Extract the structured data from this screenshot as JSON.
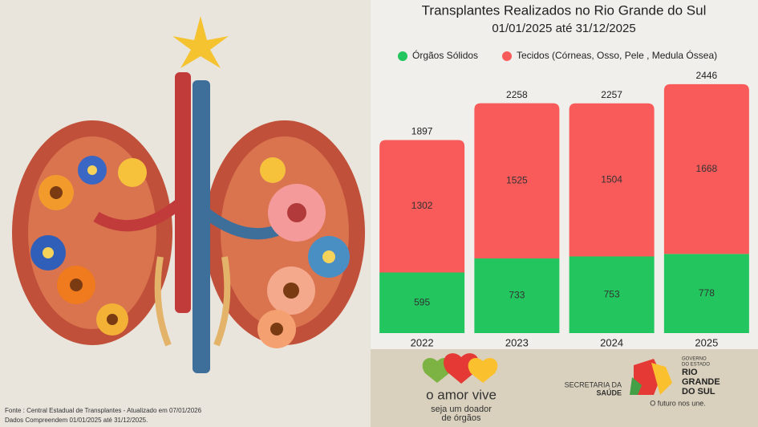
{
  "chart_data": {
    "type": "stacked_bar",
    "title": "Transplantes Realizados no Rio Grande do Sul",
    "subtitle": "01/01/2025 até 31/12/2025",
    "categories": [
      "2022",
      "2023",
      "2024",
      "2025"
    ],
    "series": [
      {
        "name": "Órgãos Sólidos",
        "color": "#22c55e",
        "values": [
          595,
          733,
          753,
          778
        ]
      },
      {
        "name": "Tecidos (Córneas, Osso, Pele , Medula Óssea)",
        "color": "#f95a5a",
        "values": [
          1302,
          1525,
          1504,
          1668
        ]
      }
    ],
    "totals": [
      1897,
      2258,
      2257,
      2446
    ],
    "ylim": [
      0,
      2500
    ]
  },
  "footer": {
    "source": "Fonte : Central Estadual de Transplantes - Atualizado em 07/01/2026",
    "period": "Dados Compreendem 01/01/2025 até 31/12/2025.",
    "campaign": "o amor vive",
    "campaign_sub_1": "seja um doador",
    "campaign_sub_2": "de órgãos",
    "secretaria_1": "SECRETARIA DA",
    "secretaria_2": "SAÚDE",
    "gov_1": "GOVERNO",
    "gov_2": "DO ESTADO",
    "state_1": "RIO",
    "state_2": "GRANDE",
    "state_3": "DO SUL",
    "slogan": "O futuro nos une."
  }
}
